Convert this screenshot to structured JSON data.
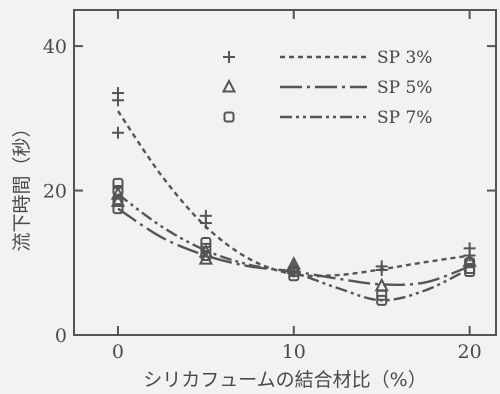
{
  "chart_data": {
    "type": "line",
    "xlabel": "シリカフュームの結合材比（%）",
    "ylabel": "流下時間（秒）",
    "xlim": [
      -2.5,
      21.5
    ],
    "ylim": [
      0,
      45
    ],
    "xticks": [
      0,
      10,
      20
    ],
    "yticks": [
      0,
      20,
      40
    ],
    "grid": false,
    "legend_position": "top-right",
    "series": [
      {
        "name": "SP 3%",
        "marker": "plus-icon",
        "line_style": "dashed",
        "points": [
          [
            0,
            33.5
          ],
          [
            0,
            32.5
          ],
          [
            0,
            28
          ],
          [
            5,
            16.5
          ],
          [
            5,
            15.5
          ],
          [
            10,
            8.8
          ],
          [
            15,
            9.5
          ],
          [
            15,
            9
          ],
          [
            20,
            12
          ],
          [
            20,
            11
          ]
        ],
        "curve": [
          [
            0,
            31
          ],
          [
            2.5,
            22
          ],
          [
            5,
            15
          ],
          [
            7.5,
            10.5
          ],
          [
            10,
            8.4
          ],
          [
            12.5,
            8.3
          ],
          [
            15,
            9.1
          ],
          [
            17.5,
            10.1
          ],
          [
            20,
            11
          ]
        ]
      },
      {
        "name": "SP 5%",
        "marker": "triangle-icon",
        "line_style": "long-dash-dot",
        "points": [
          [
            0,
            19.5
          ],
          [
            0,
            18.5
          ],
          [
            5,
            11.5
          ],
          [
            5,
            10.5
          ],
          [
            10,
            9.8
          ],
          [
            10,
            9.2
          ],
          [
            15,
            6.8
          ],
          [
            20,
            10.2
          ]
        ],
        "curve": [
          [
            0,
            17.5
          ],
          [
            2.5,
            13.5
          ],
          [
            5,
            11
          ],
          [
            7.5,
            9.5
          ],
          [
            10,
            8.8
          ],
          [
            12.5,
            7.8
          ],
          [
            15,
            7
          ],
          [
            17.5,
            7.3
          ],
          [
            20,
            9.5
          ]
        ]
      },
      {
        "name": "SP 7%",
        "marker": "square-icon",
        "line_style": "dash-dot-dot",
        "points": [
          [
            0,
            21
          ],
          [
            0,
            20
          ],
          [
            0,
            18.5
          ],
          [
            0,
            17.5
          ],
          [
            5,
            12.8
          ],
          [
            5,
            12
          ],
          [
            5,
            11
          ],
          [
            10,
            8.8
          ],
          [
            10,
            8.2
          ],
          [
            15,
            5.5
          ],
          [
            15,
            4.8
          ],
          [
            20,
            10
          ],
          [
            20,
            9.2
          ],
          [
            20,
            8.8
          ]
        ],
        "curve": [
          [
            0,
            19.5
          ],
          [
            2.5,
            15
          ],
          [
            5,
            11.7
          ],
          [
            7.5,
            9.7
          ],
          [
            10,
            8.6
          ],
          [
            12.5,
            6.5
          ],
          [
            15,
            4.8
          ],
          [
            17.5,
            6.2
          ],
          [
            20,
            9.2
          ]
        ]
      }
    ]
  }
}
